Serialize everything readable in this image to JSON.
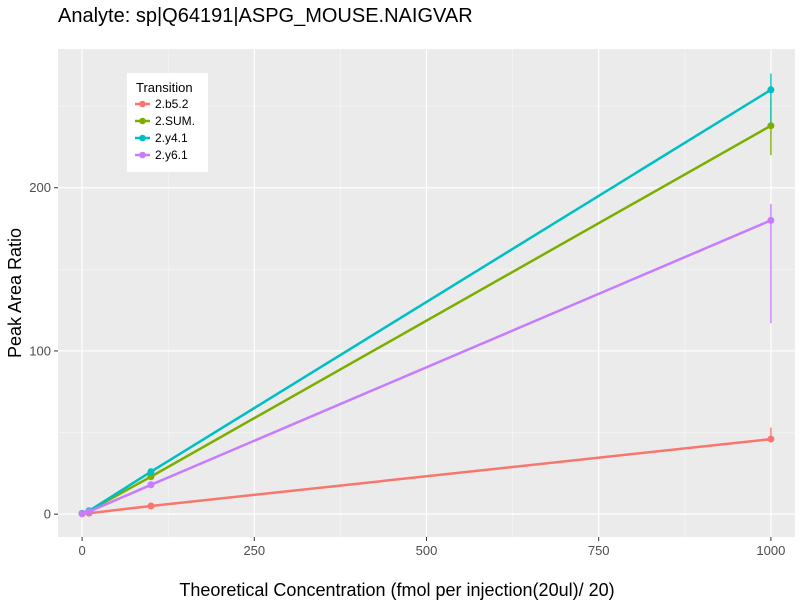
{
  "chart_data": {
    "type": "line",
    "title": "Analyte: sp|Q64191|ASPG_MOUSE.NAIGVAR",
    "xlabel": "Theoretical Concentration (fmol per injection(20ul)/ 20)",
    "ylabel": "Peak Area Ratio",
    "xlim": [
      -35,
      1035
    ],
    "ylim": [
      -14,
      285
    ],
    "x_ticks": [
      0,
      250,
      500,
      750,
      1000
    ],
    "x_tick_labels": [
      "0",
      "250",
      "500",
      "750",
      "1000"
    ],
    "y_ticks": [
      0,
      100,
      200
    ],
    "y_tick_labels": [
      "0",
      "100",
      "200"
    ],
    "grid": true,
    "legend": {
      "title": "Transition",
      "position": "top-left"
    },
    "series": [
      {
        "name": "2.b5.2",
        "color": "#F8766D",
        "x": [
          0,
          10,
          100,
          1000
        ],
        "y": [
          0.2,
          0.6,
          5,
          46
        ],
        "err_low": [
          0.2,
          0.6,
          5,
          44
        ],
        "err_high": [
          0.2,
          0.6,
          5,
          53
        ]
      },
      {
        "name": "2.SUM.",
        "color": "#7CAE00",
        "x": [
          0,
          10,
          100,
          1000
        ],
        "y": [
          0.5,
          2,
          23,
          238
        ],
        "err_low": [
          0.5,
          2,
          21,
          220
        ],
        "err_high": [
          0.5,
          2,
          25,
          255
        ]
      },
      {
        "name": "2.y4.1",
        "color": "#00BFC4",
        "x": [
          0,
          10,
          100,
          1000
        ],
        "y": [
          0.5,
          2,
          26,
          260
        ],
        "err_low": [
          0.5,
          2,
          24,
          240
        ],
        "err_high": [
          0.5,
          2,
          27,
          270
        ]
      },
      {
        "name": "2.y6.1",
        "color": "#C77CFF",
        "x": [
          0,
          10,
          100,
          1000
        ],
        "y": [
          0.3,
          1.5,
          18,
          180
        ],
        "err_low": [
          0.3,
          1.5,
          16,
          117
        ],
        "err_high": [
          0.3,
          1.5,
          19,
          190
        ]
      }
    ]
  }
}
